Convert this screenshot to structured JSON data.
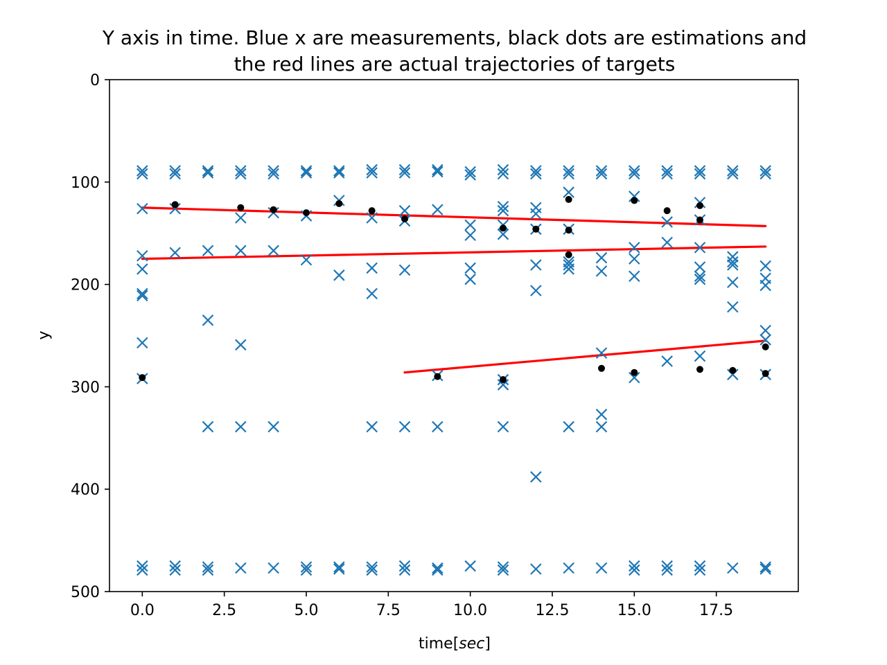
{
  "chart_data": {
    "type": "scatter",
    "title_line1": "Y axis in time. Blue x are measurements, black dots are estimations and",
    "title_line2": "the red lines are actual trajectories of targets",
    "xlabel_prefix": "time[",
    "xlabel_italic": "sec",
    "xlabel_suffix": "]",
    "ylabel": "y",
    "xlim": [
      -1,
      20
    ],
    "ylim": [
      0,
      500
    ],
    "y_inverted": true,
    "x_ticks": [
      0,
      2.5,
      5,
      7.5,
      10,
      12.5,
      15,
      17.5
    ],
    "x_tick_labels": [
      "0.0",
      "2.5",
      "5.0",
      "7.5",
      "10.0",
      "12.5",
      "15.0",
      "17.5"
    ],
    "y_ticks": [
      0,
      100,
      200,
      300,
      400,
      500
    ],
    "y_tick_labels": [
      "0",
      "100",
      "200",
      "300",
      "400",
      "500"
    ],
    "grid": false,
    "colors": {
      "measurements": "#1f77b4",
      "estimations": "#000000",
      "trajectories": "#ff0000"
    },
    "series": [
      {
        "marker": "x",
        "points": [
          [
            0,
            89
          ],
          [
            0,
            92
          ],
          [
            0,
            126
          ],
          [
            0,
            172
          ],
          [
            0,
            185
          ],
          [
            0,
            209
          ],
          [
            0,
            211
          ],
          [
            0,
            257
          ],
          [
            0,
            292
          ],
          [
            0,
            475
          ],
          [
            0,
            479
          ],
          [
            1,
            89
          ],
          [
            1,
            92
          ],
          [
            1,
            126
          ],
          [
            1,
            169
          ],
          [
            1,
            475
          ],
          [
            1,
            479
          ],
          [
            2,
            89
          ],
          [
            2,
            91
          ],
          [
            2,
            167
          ],
          [
            2,
            235
          ],
          [
            2,
            339
          ],
          [
            2,
            476
          ],
          [
            2,
            479
          ],
          [
            3,
            89
          ],
          [
            3,
            92
          ],
          [
            3,
            135
          ],
          [
            3,
            167
          ],
          [
            3,
            259
          ],
          [
            3,
            339
          ],
          [
            3,
            477
          ],
          [
            4,
            89
          ],
          [
            4,
            92
          ],
          [
            4,
            130
          ],
          [
            4,
            167
          ],
          [
            4,
            339
          ],
          [
            4,
            477
          ],
          [
            5,
            89
          ],
          [
            5,
            91
          ],
          [
            5,
            133
          ],
          [
            5,
            176
          ],
          [
            5,
            476
          ],
          [
            5,
            479
          ],
          [
            6,
            89
          ],
          [
            6,
            91
          ],
          [
            6,
            118
          ],
          [
            6,
            191
          ],
          [
            6,
            476
          ],
          [
            6,
            478
          ],
          [
            7,
            88
          ],
          [
            7,
            91
          ],
          [
            7,
            135
          ],
          [
            7,
            184
          ],
          [
            7,
            209
          ],
          [
            7,
            339
          ],
          [
            7,
            476
          ],
          [
            7,
            479
          ],
          [
            8,
            88
          ],
          [
            8,
            91
          ],
          [
            8,
            128
          ],
          [
            8,
            138
          ],
          [
            8,
            186
          ],
          [
            8,
            339
          ],
          [
            8,
            475
          ],
          [
            8,
            479
          ],
          [
            9,
            88
          ],
          [
            9,
            90
          ],
          [
            9,
            127
          ],
          [
            9,
            289
          ],
          [
            9,
            339
          ],
          [
            9,
            477
          ],
          [
            9,
            479
          ],
          [
            10,
            90
          ],
          [
            10,
            93
          ],
          [
            10,
            142
          ],
          [
            10,
            152
          ],
          [
            10,
            184
          ],
          [
            10,
            195
          ],
          [
            10,
            475
          ],
          [
            11,
            88
          ],
          [
            11,
            92
          ],
          [
            11,
            124
          ],
          [
            11,
            128
          ],
          [
            11,
            142
          ],
          [
            11,
            151
          ],
          [
            11,
            293
          ],
          [
            11,
            298
          ],
          [
            11,
            339
          ],
          [
            11,
            476
          ],
          [
            11,
            479
          ],
          [
            12,
            89
          ],
          [
            12,
            92
          ],
          [
            12,
            125
          ],
          [
            12,
            131
          ],
          [
            12,
            146
          ],
          [
            12,
            181
          ],
          [
            12,
            206
          ],
          [
            12,
            388
          ],
          [
            12,
            478
          ],
          [
            13,
            89
          ],
          [
            13,
            92
          ],
          [
            13,
            110
          ],
          [
            13,
            146
          ],
          [
            13,
            178
          ],
          [
            13,
            181
          ],
          [
            13,
            185
          ],
          [
            13,
            339
          ],
          [
            13,
            477
          ],
          [
            14,
            89
          ],
          [
            14,
            92
          ],
          [
            14,
            174
          ],
          [
            14,
            187
          ],
          [
            14,
            267
          ],
          [
            14,
            327
          ],
          [
            14,
            339
          ],
          [
            14,
            477
          ],
          [
            15,
            89
          ],
          [
            15,
            92
          ],
          [
            15,
            114
          ],
          [
            15,
            164
          ],
          [
            15,
            175
          ],
          [
            15,
            192
          ],
          [
            15,
            291
          ],
          [
            15,
            475
          ],
          [
            15,
            479
          ],
          [
            16,
            89
          ],
          [
            16,
            92
          ],
          [
            16,
            139
          ],
          [
            16,
            159
          ],
          [
            16,
            275
          ],
          [
            16,
            475
          ],
          [
            16,
            479
          ],
          [
            17,
            89
          ],
          [
            17,
            92
          ],
          [
            17,
            120
          ],
          [
            17,
            137
          ],
          [
            17,
            164
          ],
          [
            17,
            183
          ],
          [
            17,
            192
          ],
          [
            17,
            195
          ],
          [
            17,
            270
          ],
          [
            17,
            475
          ],
          [
            17,
            479
          ],
          [
            18,
            89
          ],
          [
            18,
            92
          ],
          [
            18,
            173
          ],
          [
            18,
            178
          ],
          [
            18,
            181
          ],
          [
            18,
            198
          ],
          [
            18,
            222
          ],
          [
            18,
            288
          ],
          [
            18,
            477
          ],
          [
            19,
            89
          ],
          [
            19,
            92
          ],
          [
            19,
            182
          ],
          [
            19,
            194
          ],
          [
            19,
            201
          ],
          [
            19,
            245
          ],
          [
            19,
            254
          ],
          [
            19,
            288
          ],
          [
            19,
            476
          ],
          [
            19,
            478
          ]
        ]
      },
      {
        "marker": "dot",
        "points": [
          [
            0,
            291
          ],
          [
            1,
            122
          ],
          [
            3,
            125
          ],
          [
            4,
            127
          ],
          [
            5,
            130
          ],
          [
            6,
            121
          ],
          [
            7,
            128
          ],
          [
            8,
            136
          ],
          [
            9,
            290
          ],
          [
            11,
            145
          ],
          [
            11,
            293
          ],
          [
            12,
            146
          ],
          [
            13,
            117
          ],
          [
            13,
            147
          ],
          [
            13,
            171
          ],
          [
            14,
            282
          ],
          [
            15,
            118
          ],
          [
            15,
            286
          ],
          [
            16,
            128
          ],
          [
            17,
            123
          ],
          [
            17,
            137
          ],
          [
            17,
            283
          ],
          [
            18,
            284
          ],
          [
            19,
            261
          ],
          [
            19,
            287
          ]
        ]
      },
      {
        "marker": "line",
        "lines": [
          [
            [
              0,
              125
            ],
            [
              19,
              143
            ]
          ],
          [
            [
              0,
              175
            ],
            [
              19,
              163
            ]
          ],
          [
            [
              8,
              286
            ],
            [
              19,
              255
            ]
          ]
        ]
      }
    ]
  }
}
